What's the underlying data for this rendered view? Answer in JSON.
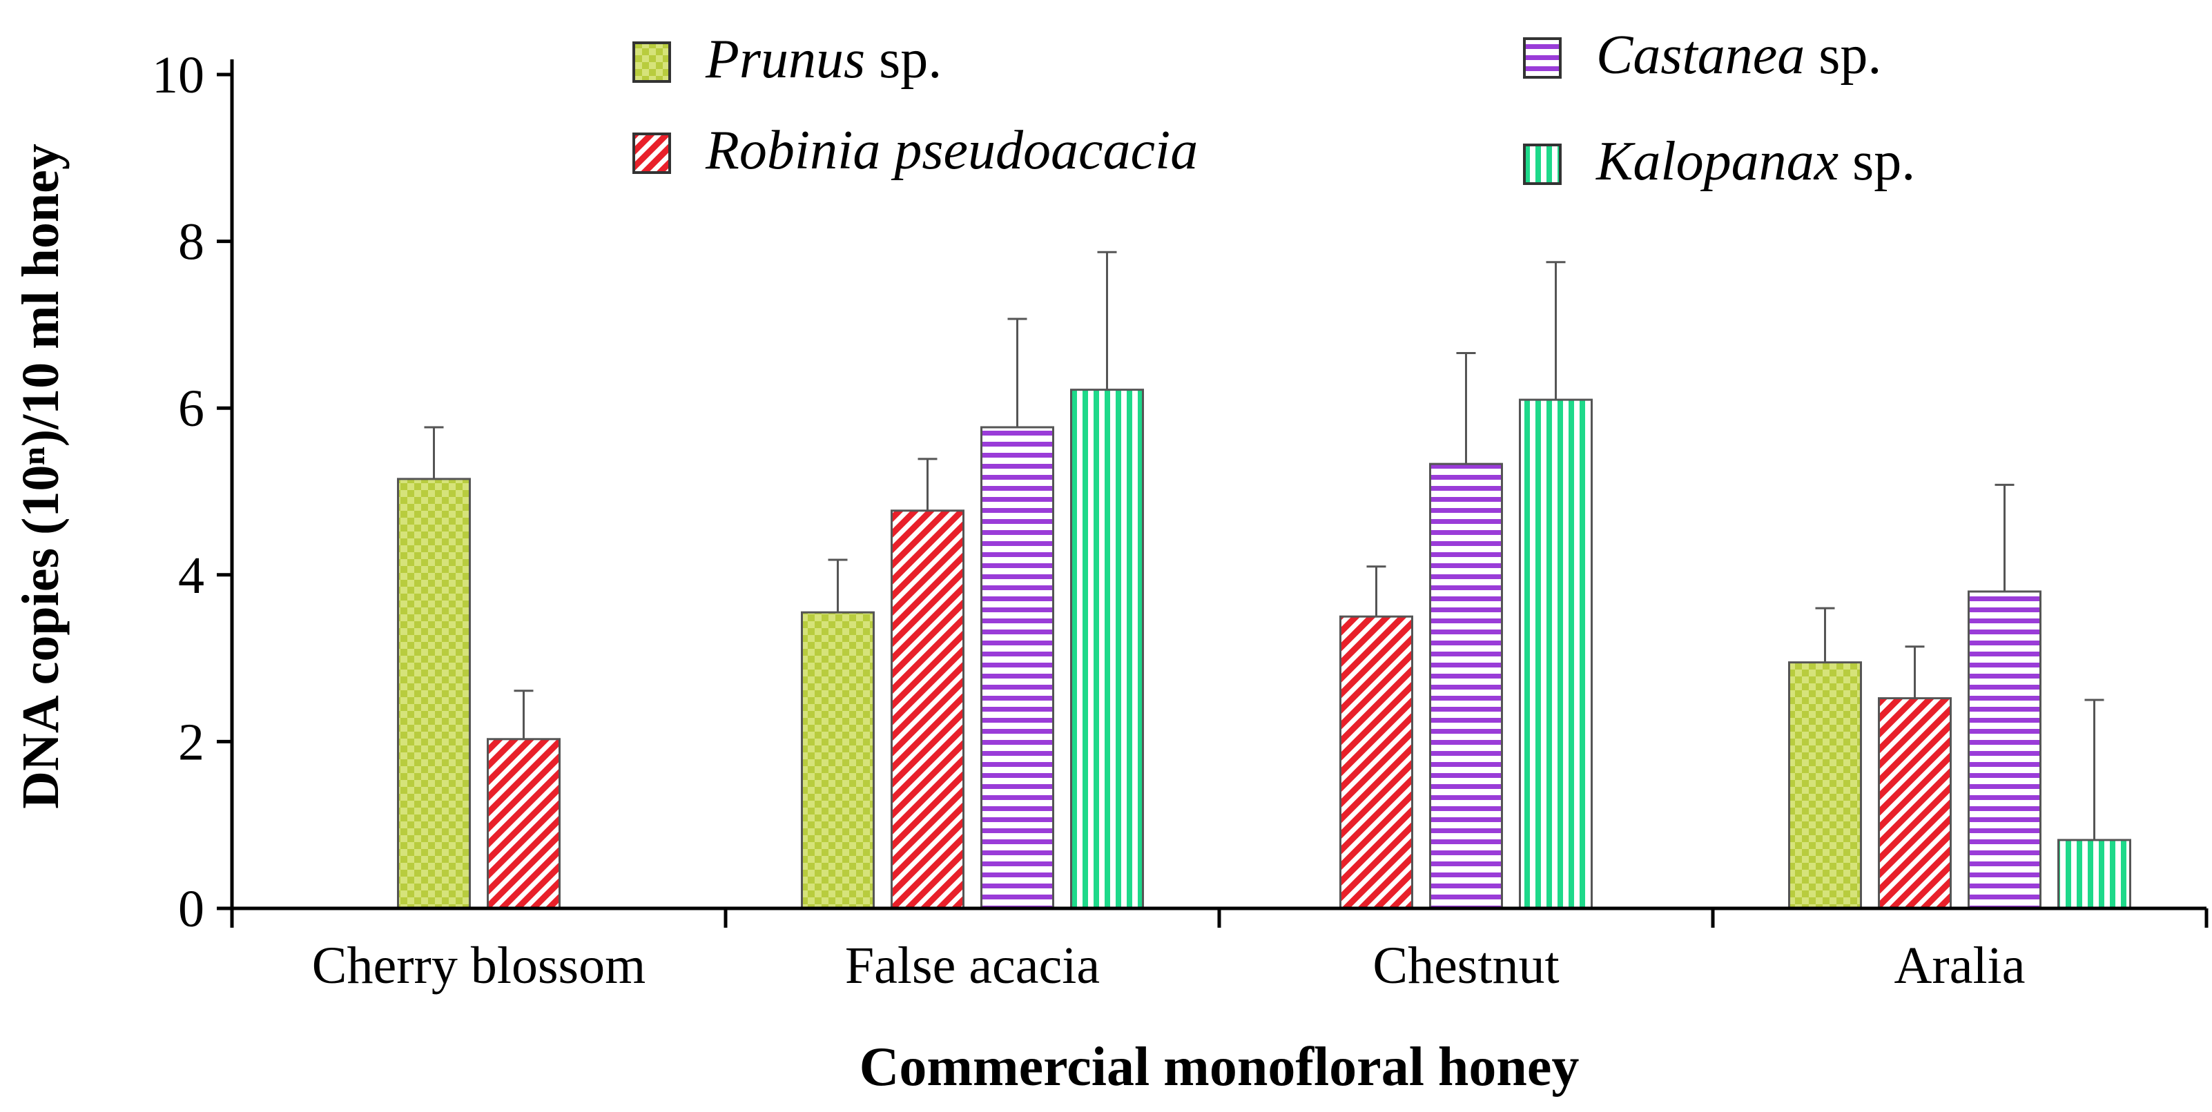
{
  "chart_data": {
    "type": "bar",
    "title": "",
    "xlabel": "Commercial monofloral honey",
    "ylabel": "DNA copies (10ⁿ)/10 ml honey",
    "ylim": [
      0,
      10
    ],
    "yticks": [
      0,
      2,
      4,
      6,
      8,
      10
    ],
    "categories": [
      "Cherry blossom",
      "False acacia",
      "Chestnut",
      "Aralia"
    ],
    "series": [
      {
        "name_italic": "Prunus",
        "name_suffix": " sp.",
        "color": "#c5d85a",
        "pattern": "checker",
        "values": [
          5.15,
          3.55,
          null,
          2.95
        ],
        "errors": [
          0.62,
          0.63,
          null,
          0.65
        ]
      },
      {
        "name_italic": "Robinia pseudoacacia",
        "name_suffix": "",
        "color": "#e8202a",
        "pattern": "diagonal",
        "values": [
          2.03,
          4.77,
          3.5,
          2.52
        ],
        "errors": [
          0.58,
          0.62,
          0.6,
          0.62
        ]
      },
      {
        "name_italic": "Castanea",
        "name_suffix": " sp.",
        "color": "#9a3cd8",
        "pattern": "horizontal",
        "values": [
          null,
          5.77,
          5.33,
          3.8
        ],
        "errors": [
          null,
          1.3,
          1.33,
          1.28
        ]
      },
      {
        "name_italic": "Kalopanax",
        "name_suffix": " sp.",
        "color": "#1ed98a",
        "pattern": "vertical",
        "values": [
          null,
          6.22,
          6.1,
          0.82
        ],
        "errors": [
          null,
          1.65,
          1.65,
          1.68
        ]
      }
    ]
  }
}
